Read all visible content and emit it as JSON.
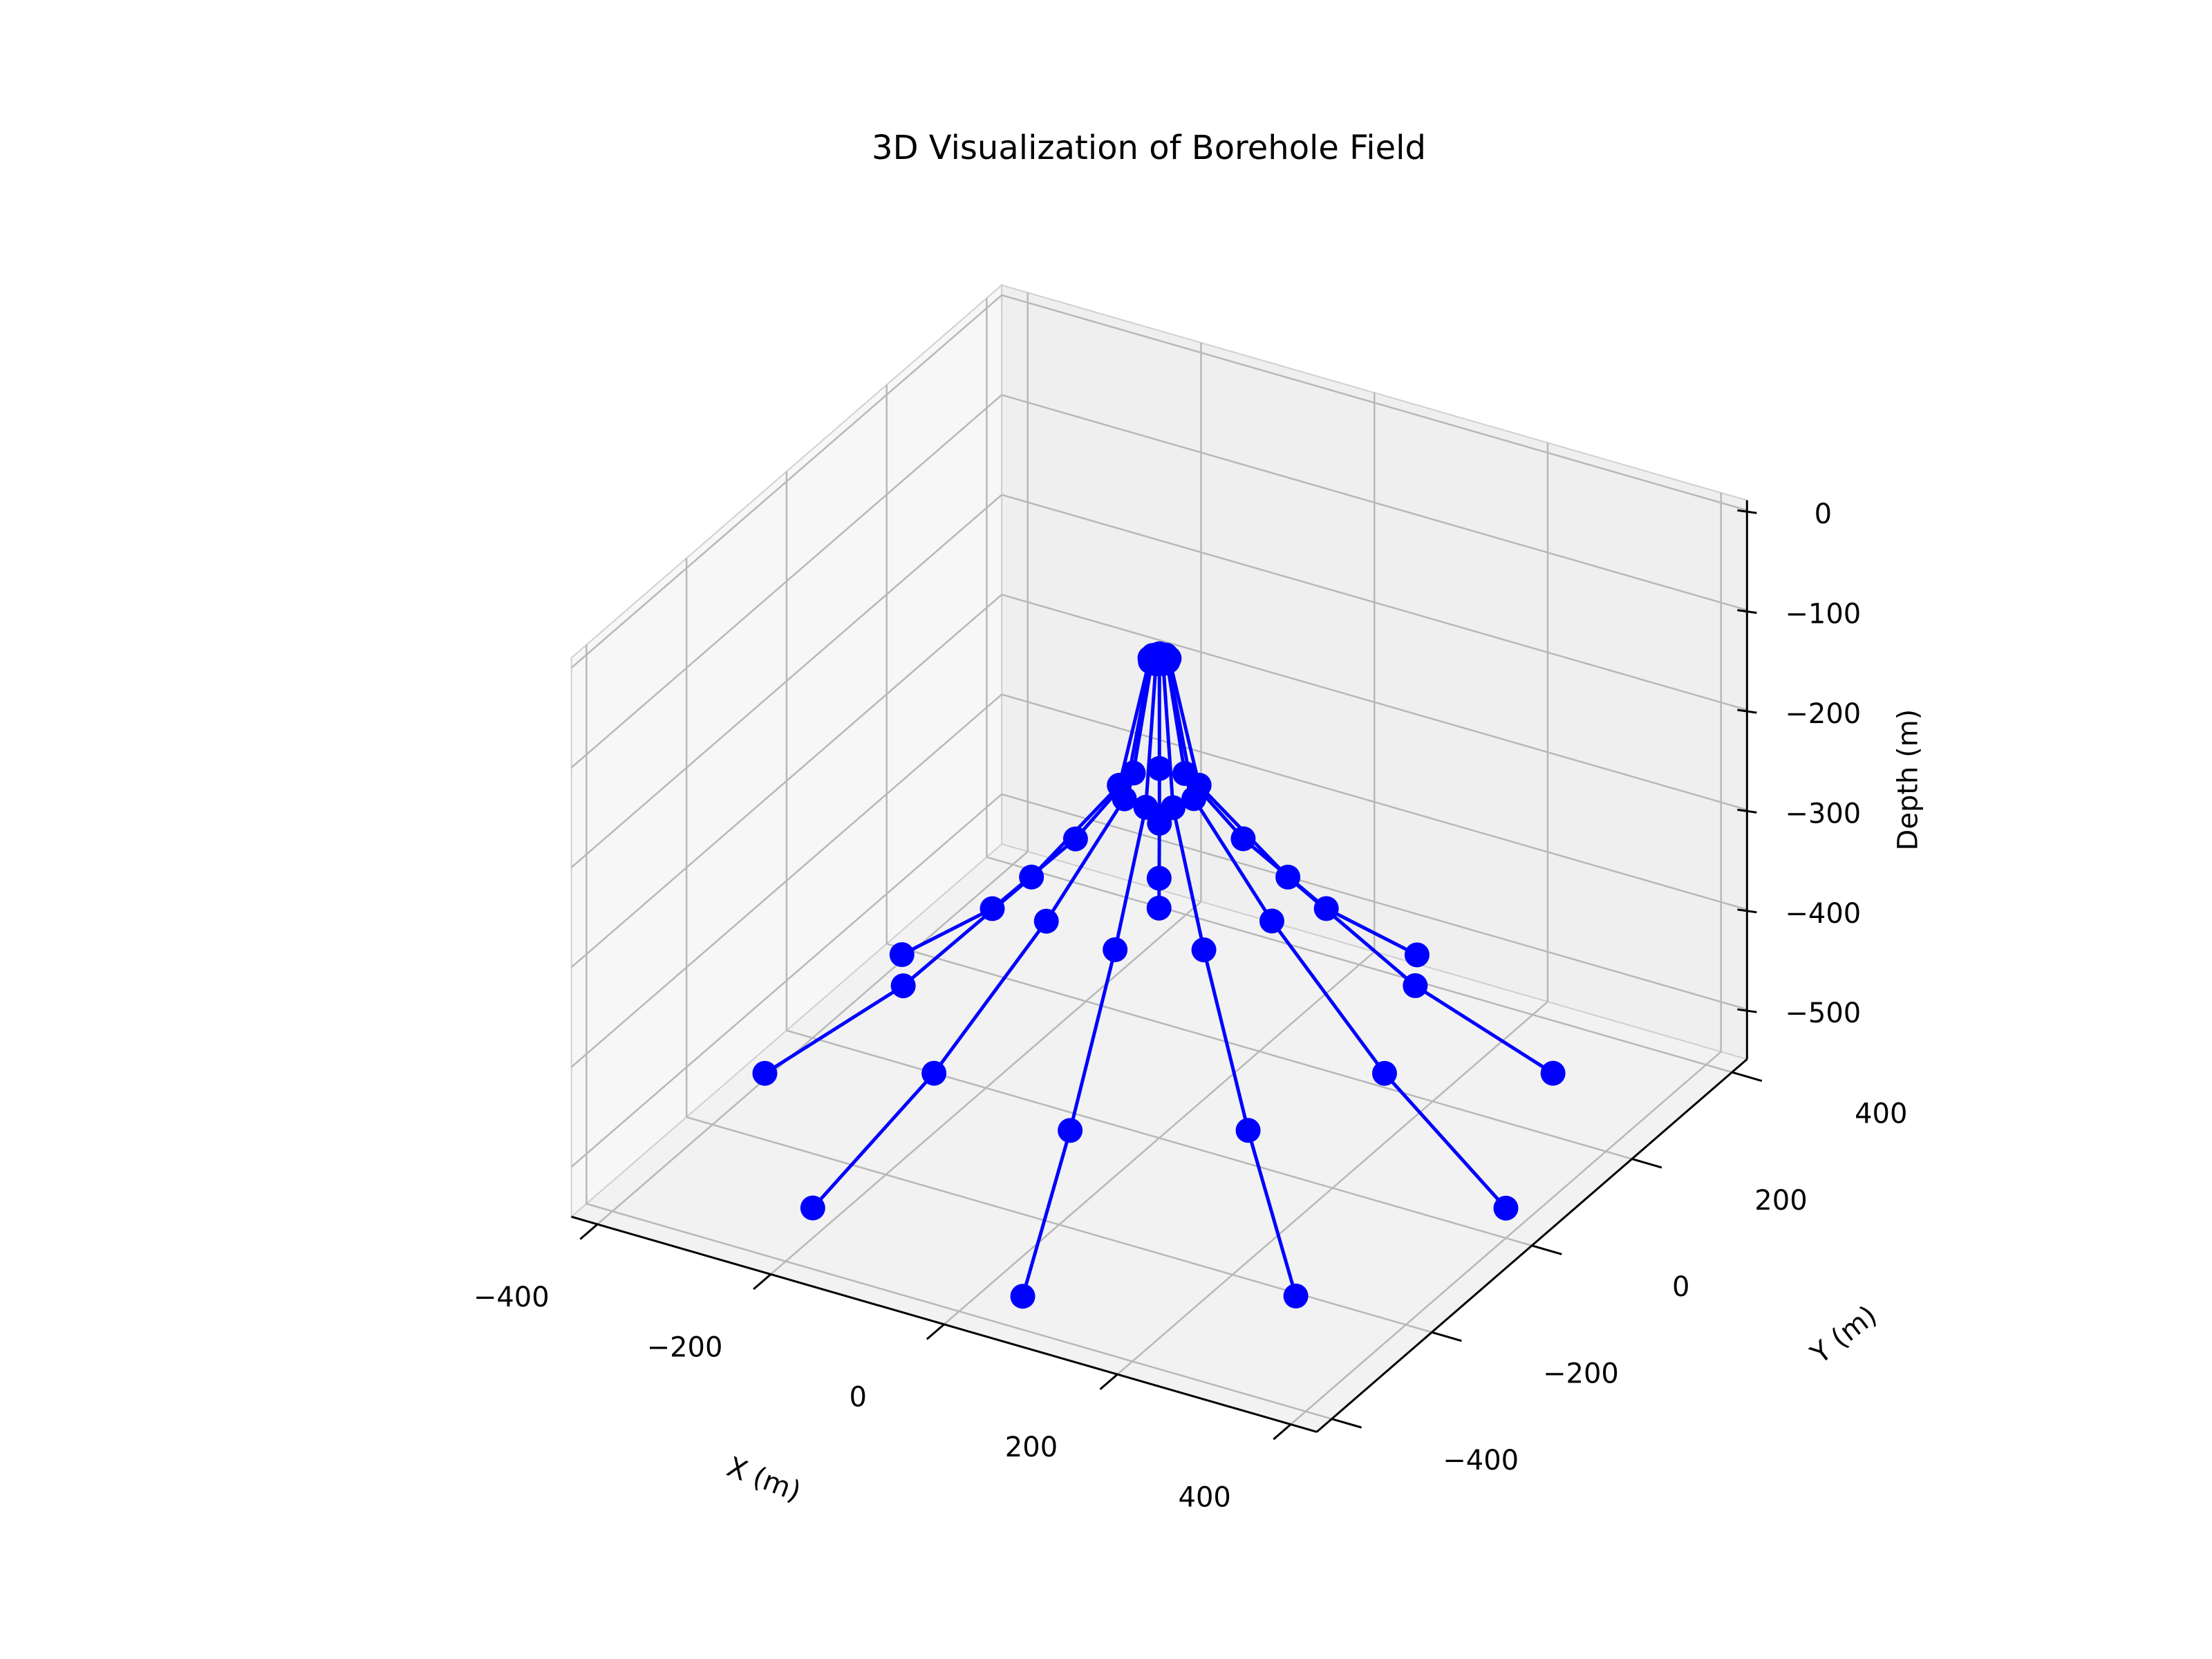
{
  "chart_data": {
    "type": "line3d",
    "title": "3D Visualization of Borehole Field",
    "xlabel": "X (m)",
    "ylabel": "Y (m)",
    "zlabel": "Depth (m)",
    "xlim": [
      -430,
      430
    ],
    "ylim": [
      -430,
      430
    ],
    "zlim": [
      -550,
      10
    ],
    "xticks": [
      {
        "value": -400,
        "label": "−400"
      },
      {
        "value": -200,
        "label": "−200"
      },
      0,
      200,
      400
    ],
    "yticks": [
      {
        "value": -400,
        "label": "−400"
      },
      {
        "value": -200,
        "label": "−200"
      },
      0,
      200,
      400
    ],
    "zticks": [
      {
        "value": -500,
        "label": "−500"
      },
      {
        "value": -400,
        "label": "−400"
      },
      {
        "value": -300,
        "label": "−300"
      },
      {
        "value": -200,
        "label": "−200"
      },
      {
        "value": -100,
        "label": "−100"
      },
      0
    ],
    "grid": true,
    "color": "#0000ff",
    "series": [
      {
        "x": [
          -5,
          -20,
          -65,
          -130,
          -200
        ],
        "y": [
          9,
          35,
          113,
          225,
          346
        ],
        "z": [
          -70,
          -200,
          -300,
          -420,
          -520
        ]
      },
      {
        "x": [
          -9,
          -38,
          -122,
          -244,
          -376
        ],
        "y": [
          3,
          14,
          44,
          89,
          137
        ],
        "z": [
          -70,
          -200,
          -300,
          -420,
          -520
        ]
      },
      {
        "x": [
          -9,
          -38,
          -122,
          -244,
          -376
        ],
        "y": [
          -3,
          -14,
          -44,
          -89,
          -137
        ],
        "z": [
          -70,
          -200,
          -300,
          -420,
          -520
        ]
      },
      {
        "x": [
          -5,
          -20,
          -65,
          -130,
          -200
        ],
        "y": [
          -9,
          -35,
          -113,
          -225,
          -346
        ],
        "z": [
          -70,
          -200,
          -300,
          -420,
          -520
        ]
      },
      {
        "x": [
          2,
          7,
          23,
          45,
          70
        ],
        "y": [
          -10,
          -39,
          -128,
          -256,
          -394
        ],
        "z": [
          -70,
          -200,
          -300,
          -420,
          -520
        ]
      },
      {
        "x": [
          8,
          31,
          100,
          199,
          306
        ],
        "y": [
          -6,
          -26,
          -84,
          -167,
          -257
        ],
        "z": [
          -70,
          -200,
          -300,
          -420,
          -520
        ]
      },
      {
        "x": [
          10,
          40,
          130,
          260,
          400
        ],
        "y": [
          0,
          0,
          0,
          0,
          0
        ],
        "z": [
          -70,
          -200,
          -300,
          -420,
          -520
        ]
      },
      {
        "x": [
          8,
          31,
          100,
          199,
          306
        ],
        "y": [
          6,
          26,
          84,
          167,
          257
        ],
        "z": [
          -70,
          -200,
          -300,
          -420,
          -520
        ]
      },
      {
        "x": [
          2,
          7,
          23,
          45,
          70
        ],
        "y": [
          10,
          39,
          128,
          256,
          394
        ],
        "z": [
          -70,
          -200,
          -300,
          -420,
          -520
        ]
      }
    ]
  }
}
